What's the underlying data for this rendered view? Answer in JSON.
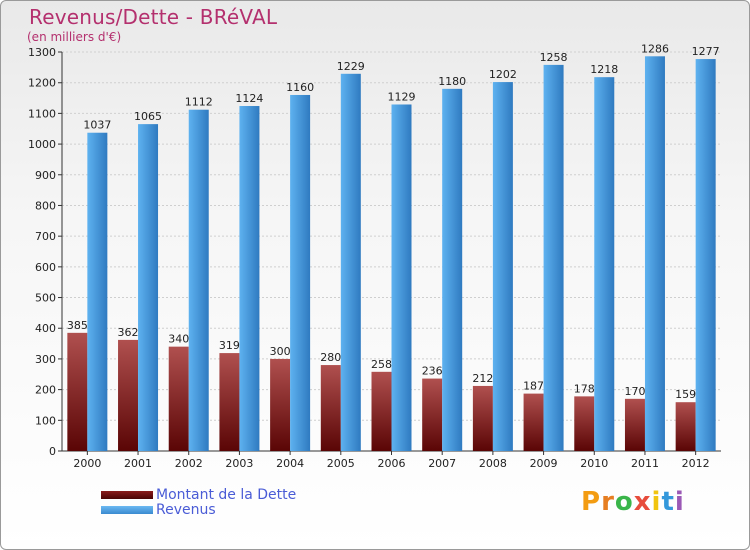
{
  "title": "Revenus/Dette - BRéVAL",
  "subtitle": "(en milliers d'€)",
  "logo": {
    "text": "Proxiti",
    "colors": [
      "#f39c12",
      "#e67e22",
      "#3ab54a",
      "#e74c3c",
      "#f1c40f",
      "#3498db",
      "#9b59b6"
    ]
  },
  "chart_data": {
    "type": "bar",
    "categories": [
      "2000",
      "2001",
      "2002",
      "2003",
      "2004",
      "2005",
      "2006",
      "2007",
      "2008",
      "2009",
      "2010",
      "2011",
      "2012"
    ],
    "series": [
      {
        "name": "Montant de la Dette",
        "color": "#6e0b0b",
        "values": [
          385,
          362,
          340,
          319,
          300,
          280,
          258,
          236,
          212,
          187,
          178,
          170,
          159
        ]
      },
      {
        "name": "Revenus",
        "color": "#4ba3e6",
        "values": [
          1037,
          1065,
          1112,
          1124,
          1160,
          1229,
          1129,
          1180,
          1202,
          1258,
          1218,
          1286,
          1277
        ]
      }
    ],
    "ylim": [
      0,
      1300
    ],
    "yticks": [
      0,
      100,
      200,
      300,
      400,
      500,
      600,
      700,
      800,
      900,
      1000,
      1100,
      1200,
      1300
    ],
    "grid": true,
    "legend_position": "bottom-left"
  }
}
